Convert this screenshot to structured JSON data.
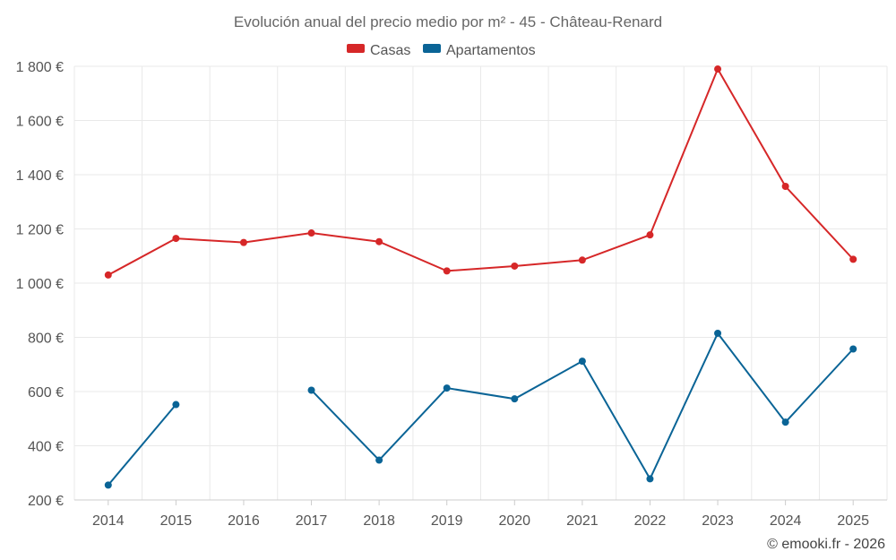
{
  "chart_data": {
    "type": "line",
    "title": "Evolución anual del precio medio por m² - 45 - Château-Renard",
    "categories": [
      "2014",
      "2015",
      "2016",
      "2017",
      "2018",
      "2019",
      "2020",
      "2021",
      "2022",
      "2023",
      "2024",
      "2025"
    ],
    "y_ticks": [
      "200 €",
      "400 €",
      "600 €",
      "800 €",
      "1 000 €",
      "1 200 €",
      "1 400 €",
      "1 600 €",
      "1 800 €"
    ],
    "ylim": [
      200,
      1800
    ],
    "grid": true,
    "legend_position": "top-center",
    "series": [
      {
        "name": "Casas",
        "color": "#d62728",
        "values": [
          1030,
          1165,
          1150,
          1185,
          1153,
          1045,
          1063,
          1085,
          1178,
          1790,
          1357,
          1088
        ]
      },
      {
        "name": "Apartamentos",
        "color": "#0a6496",
        "values": [
          255,
          552,
          null,
          605,
          347,
          613,
          573,
          712,
          278,
          815,
          487,
          757
        ]
      }
    ]
  },
  "footer": "© emooki.fr - 2026"
}
